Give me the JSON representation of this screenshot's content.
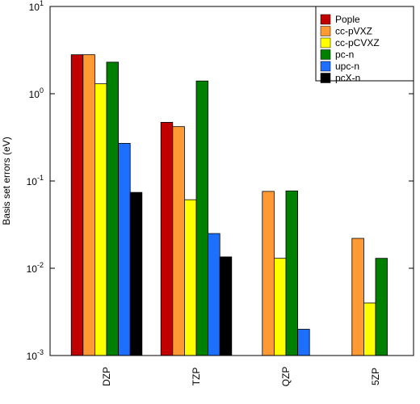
{
  "chart_data": {
    "type": "bar",
    "y_label": "Basis set errors (eV)",
    "log_y": true,
    "categories": [
      "DZP",
      "TZP",
      "QZP",
      "5ZP"
    ],
    "series": [
      {
        "name": "Pople",
        "color": "#c00000",
        "values": [
          2.8,
          0.47,
          null,
          null
        ]
      },
      {
        "name": "cc-pVXZ",
        "color": "#ff9933",
        "values": [
          2.8,
          0.42,
          0.076,
          0.022
        ]
      },
      {
        "name": "cc-pCVXZ",
        "color": "#ffff00",
        "values": [
          1.3,
          0.061,
          0.013,
          0.004
        ]
      },
      {
        "name": "pc-n",
        "color": "#008000",
        "values": [
          2.3,
          1.4,
          0.077,
          0.013
        ]
      },
      {
        "name": "upc-n",
        "color": "#1f6fff",
        "values": [
          0.27,
          0.025,
          0.002,
          null
        ]
      },
      {
        "name": "pcX-n",
        "color": "#000000",
        "values": [
          0.074,
          0.0135,
          null,
          null
        ]
      }
    ],
    "ylim": [
      0.001,
      10
    ],
    "yticks": [
      {
        "value": 0.001,
        "label": "10",
        "exponent": "-3"
      },
      {
        "value": 0.01,
        "label": "10",
        "exponent": "-2"
      },
      {
        "value": 0.1,
        "label": "10",
        "exponent": "-1"
      },
      {
        "value": 1,
        "label": "10",
        "exponent": "0"
      },
      {
        "value": 10,
        "label": "10",
        "exponent": "1"
      }
    ],
    "legend": "top-right"
  }
}
